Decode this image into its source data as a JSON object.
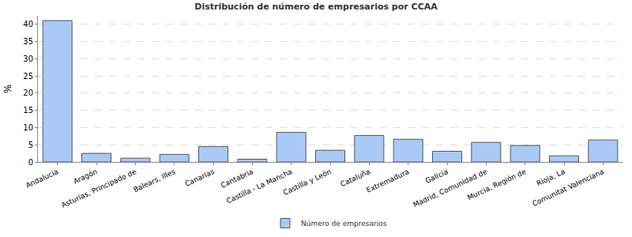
{
  "chart_data": {
    "type": "bar",
    "title": "Distribución de número de empresarios por CCAA",
    "y_label": "%",
    "categories": [
      "Andalucía",
      "Aragón",
      "Asturias, Principado de",
      "Balears, Illes",
      "Canarias",
      "Cantabria",
      "Castilla - La Mancha",
      "Castilla y León",
      "Cataluña",
      "Extremadura",
      "Galicia",
      "Madrid, Comunidad de",
      "Murcia, Región de",
      "Rioja, La",
      "Comunitat Valenciana"
    ],
    "series": [
      {
        "name": "Número de empresarios",
        "color": "#a9c9f6",
        "values": [
          41.1,
          2.5,
          1.1,
          2.2,
          4.5,
          0.8,
          8.6,
          3.4,
          7.7,
          6.6,
          3.1,
          5.7,
          4.8,
          1.8,
          6.4
        ]
      }
    ],
    "ylim": [
      0,
      42.5
    ],
    "yticks": [
      0,
      5,
      10,
      15,
      20,
      25,
      30,
      35,
      40
    ],
    "grid": true,
    "legend": "bottom"
  }
}
